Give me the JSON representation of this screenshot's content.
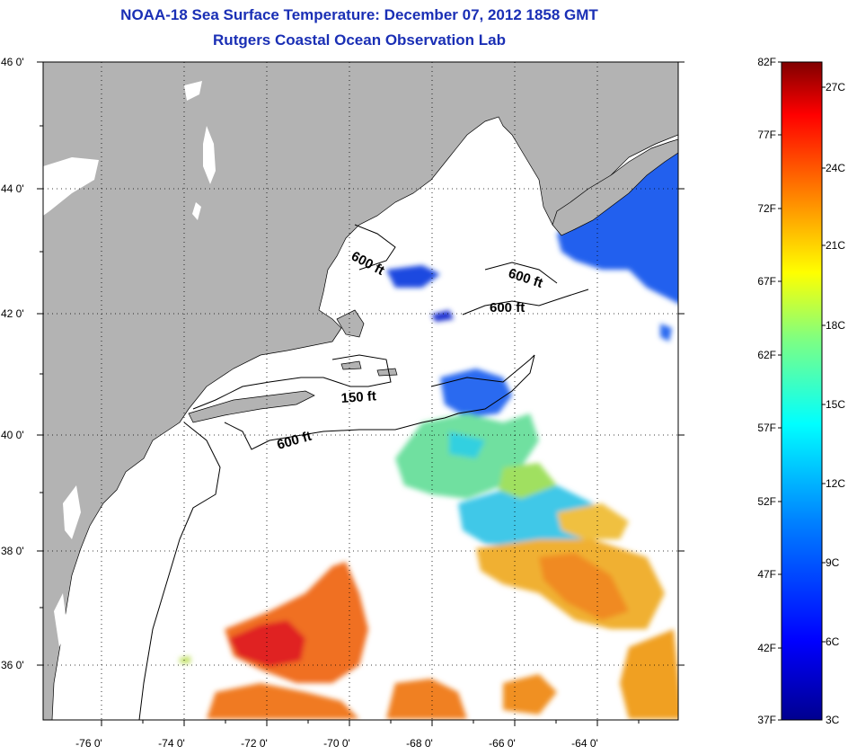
{
  "title": "NOAA-18 Sea Surface Temperature:  December 07, 2012 1858 GMT",
  "subtitle": "Rutgers Coastal Ocean Observation Lab",
  "map": {
    "lon_range": [
      -77,
      -62.7
    ],
    "lat_range": [
      35.0,
      46.0
    ],
    "x_ticks": [
      "-76 0'",
      "-74 0'",
      "-72 0'",
      "-70 0'",
      "-68 0'",
      "-66 0'",
      "-64 0'"
    ],
    "y_ticks": [
      "46 0'",
      "44 0'",
      "42 0'",
      "40 0'",
      "38 0'",
      "36 0'"
    ],
    "grid": "dotted",
    "land_color": "#b3b3b3",
    "water_color": "#ffffff",
    "contour_labels": [
      {
        "text": "600 ft",
        "lon": -70.9,
        "lat": 42.8,
        "rot": 28
      },
      {
        "text": "600 ft",
        "lon": -67.2,
        "lat": 42.5,
        "rot": 18
      },
      {
        "text": "600 ft",
        "lon": -66.8,
        "lat": 42.1,
        "rot": 0
      },
      {
        "text": "150 ft",
        "lon": -70.6,
        "lat": 40.6,
        "rot": -4
      },
      {
        "text": "600 ft",
        "lon": -72.5,
        "lat": 39.8,
        "rot": -16
      }
    ]
  },
  "colorbar": {
    "f_labels": [
      "82F",
      "77F",
      "72F",
      "67F",
      "62F",
      "57F",
      "52F",
      "47F",
      "42F",
      "37F"
    ],
    "c_labels": [
      "27C",
      "24C",
      "21C",
      "18C",
      "15C",
      "12C",
      "9C",
      "6C",
      "3C"
    ],
    "colors": [
      "#00008f",
      "#0000ff",
      "#0080ff",
      "#00ffff",
      "#80ff80",
      "#ffff00",
      "#ff8000",
      "#ff0000",
      "#800000"
    ]
  }
}
